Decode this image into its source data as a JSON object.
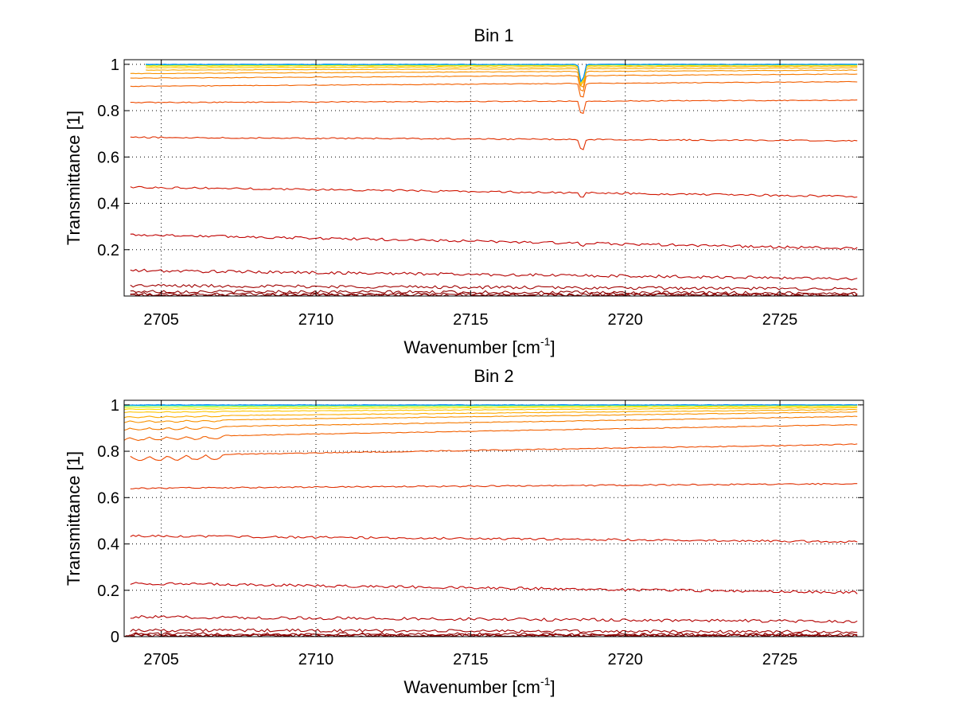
{
  "chart_data": [
    {
      "type": "line",
      "title": "Bin 1",
      "xlabel_main": "Wavenumber [cm",
      "xlabel_sup": "-1",
      "xlabel_end": "]",
      "ylabel": "Transmittance [1]",
      "xlim": [
        2703.8,
        2727.7
      ],
      "ylim": [
        0,
        1.02
      ],
      "xticks": [
        2705,
        2710,
        2715,
        2720,
        2725
      ],
      "xtick_labels": [
        "2705",
        "2710",
        "2715",
        "2720",
        "2725"
      ],
      "yticks": [
        0.2,
        0.4,
        0.6,
        0.8,
        1
      ],
      "ytick_labels": [
        "0.2",
        "0.4",
        "0.6",
        "0.8",
        "1"
      ],
      "grid": true,
      "absorption_line": {
        "x": 2718.6
      },
      "series": [
        {
          "color": "#800000",
          "x": [
            2704.0,
            2727.5
          ],
          "values": [
            0.003,
            0.003
          ],
          "dip": 0.0
        },
        {
          "color": "#880000",
          "x": [
            2704.0,
            2727.5
          ],
          "values": [
            0.008,
            0.006
          ],
          "dip": 0.0
        },
        {
          "color": "#900000",
          "x": [
            2704.0,
            2727.5
          ],
          "values": [
            0.02,
            0.012
          ],
          "dip": 0.0
        },
        {
          "color": "#a00000",
          "x": [
            2704.0,
            2727.5
          ],
          "values": [
            0.045,
            0.03
          ],
          "dip": 0.002
        },
        {
          "color": "#b30000",
          "x": [
            2704.0,
            2727.5
          ],
          "values": [
            0.11,
            0.075
          ],
          "dip": 0.005
        },
        {
          "color": "#c00000",
          "x": [
            2704.0,
            2727.5
          ],
          "values": [
            0.265,
            0.205
          ],
          "dip": 0.015
        },
        {
          "color": "#d01500",
          "x": [
            2704.0,
            2727.5
          ],
          "values": [
            0.47,
            0.43
          ],
          "dip": 0.03
        },
        {
          "color": "#e02f00",
          "x": [
            2704.0,
            2727.5
          ],
          "values": [
            0.685,
            0.67
          ],
          "dip": 0.06
        },
        {
          "color": "#ee4a00",
          "x": [
            2704.0,
            2727.5
          ],
          "values": [
            0.835,
            0.845
          ],
          "dip": 0.07
        },
        {
          "color": "#f26000",
          "x": [
            2704.0,
            2727.5
          ],
          "values": [
            0.905,
            0.925
          ],
          "dip": 0.08
        },
        {
          "color": "#f57a00",
          "x": [
            2704.0,
            2727.5
          ],
          "values": [
            0.94,
            0.958
          ],
          "dip": 0.09
        },
        {
          "color": "#f89200",
          "x": [
            2704.0,
            2727.5
          ],
          "values": [
            0.96,
            0.975
          ],
          "dip": 0.09
        },
        {
          "color": "#fbaa00",
          "x": [
            2704.5,
            2727.5
          ],
          "values": [
            0.975,
            0.985
          ],
          "dip": 0.09
        },
        {
          "color": "#fdc400",
          "x": [
            2704.5,
            2727.5
          ],
          "values": [
            0.985,
            0.992
          ],
          "dip": 0.09
        },
        {
          "color": "#fede00",
          "x": [
            2704.5,
            2727.5
          ],
          "values": [
            0.992,
            0.996
          ],
          "dip": 0.09
        },
        {
          "color": "#d8ef10",
          "x": [
            2704.5,
            2727.5
          ],
          "values": [
            0.996,
            0.998
          ],
          "dip": 0.09
        },
        {
          "color": "#80ff80",
          "x": [
            2704.5,
            2727.5
          ],
          "values": [
            0.998,
            0.999
          ],
          "dip": 0.09
        },
        {
          "color": "#20e8d8",
          "x": [
            2704.5,
            2727.5
          ],
          "values": [
            0.999,
            1.0
          ],
          "dip": 0.09
        },
        {
          "color": "#0080ff",
          "x": [
            2704.5,
            2727.5
          ],
          "values": [
            1.0,
            1.0
          ],
          "dip": 0.09
        }
      ]
    },
    {
      "type": "line",
      "title": "Bin 2",
      "xlabel_main": "Wavenumber [cm",
      "xlabel_sup": "-1",
      "xlabel_end": "]",
      "ylabel": "Transmittance [1]",
      "xlim": [
        2703.8,
        2727.7
      ],
      "ylim": [
        0,
        1.02
      ],
      "xticks": [
        2705,
        2710,
        2715,
        2720,
        2725
      ],
      "xtick_labels": [
        "2705",
        "2710",
        "2715",
        "2720",
        "2725"
      ],
      "yticks": [
        0,
        0.2,
        0.4,
        0.6,
        0.8,
        1
      ],
      "ytick_labels": [
        "0",
        "0.2",
        "0.4",
        "0.6",
        "0.8",
        "1"
      ],
      "grid": true,
      "series": [
        {
          "color": "#800000",
          "x": [
            2703.8,
            2727.5
          ],
          "values": [
            0.002,
            0.002
          ]
        },
        {
          "color": "#880000",
          "x": [
            2703.8,
            2727.5
          ],
          "values": [
            0.006,
            0.005
          ]
        },
        {
          "color": "#900000",
          "x": [
            2704.0,
            2727.5
          ],
          "values": [
            0.012,
            0.008
          ]
        },
        {
          "color": "#a00000",
          "x": [
            2704.0,
            2727.5
          ],
          "values": [
            0.028,
            0.02
          ]
        },
        {
          "color": "#b30000",
          "x": [
            2704.0,
            2727.5
          ],
          "values": [
            0.085,
            0.065
          ]
        },
        {
          "color": "#c00000",
          "x": [
            2704.0,
            2727.5
          ],
          "values": [
            0.23,
            0.19
          ]
        },
        {
          "color": "#d01500",
          "x": [
            2704.0,
            2727.5
          ],
          "values": [
            0.435,
            0.41
          ]
        },
        {
          "color": "#e02f00",
          "x": [
            2704.0,
            2727.5
          ],
          "values": [
            0.64,
            0.66
          ]
        },
        {
          "color": "#ee4a00",
          "x": [
            2704.0,
            2727.5
          ],
          "values": [
            0.78,
            0.83
          ]
        },
        {
          "color": "#f26000",
          "x": [
            2703.8,
            2727.5
          ],
          "values": [
            0.86,
            0.915
          ]
        },
        {
          "color": "#f57a00",
          "x": [
            2703.8,
            2727.5
          ],
          "values": [
            0.9,
            0.95
          ]
        },
        {
          "color": "#f89200",
          "x": [
            2703.8,
            2727.5
          ],
          "values": [
            0.93,
            0.97
          ]
        },
        {
          "color": "#fbaa00",
          "x": [
            2703.8,
            2727.5
          ],
          "values": [
            0.95,
            0.98
          ]
        },
        {
          "color": "#fdc400",
          "x": [
            2703.8,
            2727.5
          ],
          "values": [
            0.97,
            0.988
          ]
        },
        {
          "color": "#fede00",
          "x": [
            2703.8,
            2727.5
          ],
          "values": [
            0.982,
            0.993
          ]
        },
        {
          "color": "#d8ef10",
          "x": [
            2703.8,
            2727.5
          ],
          "values": [
            0.99,
            0.997
          ]
        },
        {
          "color": "#80ff80",
          "x": [
            2703.8,
            2727.5
          ],
          "values": [
            0.995,
            0.999
          ]
        },
        {
          "color": "#20e8d8",
          "x": [
            2703.8,
            2727.5
          ],
          "values": [
            0.998,
            1.0
          ]
        },
        {
          "color": "#0080ff",
          "x": [
            2703.8,
            2727.5
          ],
          "values": [
            1.0,
            1.0
          ]
        }
      ]
    }
  ]
}
